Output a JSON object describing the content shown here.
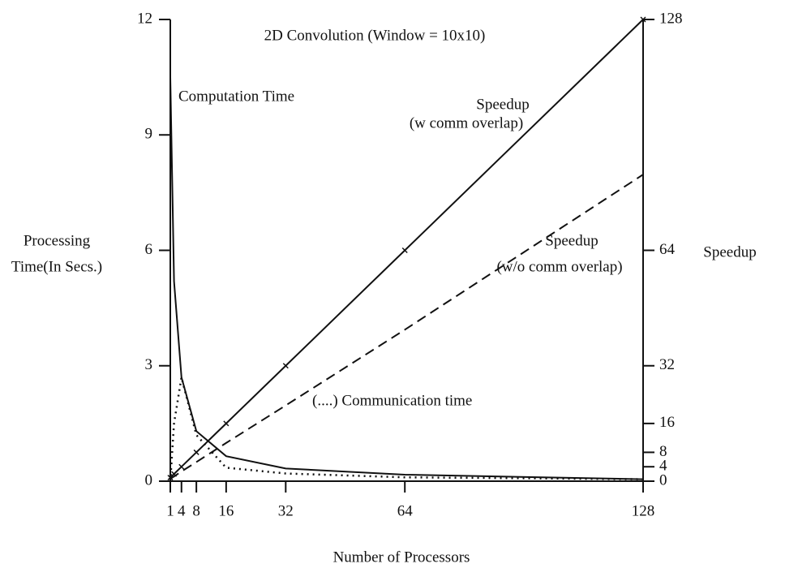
{
  "chart_data": {
    "type": "line",
    "title": "2D Convolution (Window = 10x10)",
    "xlabel": "Number of Processors",
    "ylabel": [
      "Processing",
      "Time(In Secs.)"
    ],
    "y2label": "Speedup",
    "x": [
      1,
      2,
      4,
      8,
      16,
      32,
      64,
      128
    ],
    "xlim": [
      1,
      128
    ],
    "xticks": [
      1,
      4,
      8,
      16,
      32,
      64,
      128
    ],
    "ylim": [
      0,
      12
    ],
    "yticks": [
      0,
      3,
      6,
      9,
      12
    ],
    "y2lim": [
      0,
      128
    ],
    "y2ticks": [
      0,
      4,
      8,
      16,
      32,
      64,
      128
    ],
    "series": [
      {
        "color": "#111",
        "style": "solid",
        "axis": "y",
        "values": [
          10.5,
          5.2,
          2.7,
          1.3,
          0.65,
          0.33,
          0.17,
          0.05
        ]
      },
      {
        "color": "#111",
        "style": "dotted",
        "axis": "y",
        "values": [
          0,
          1.5,
          2.7,
          1.2,
          0.35,
          0.2,
          0.1,
          0.05
        ]
      },
      {
        "color": "#111",
        "style": "solid",
        "axis": "y2",
        "markers": true,
        "values": [
          1,
          2,
          4,
          8,
          16,
          32,
          64,
          128
        ]
      },
      {
        "color": "#111",
        "style": "dashed",
        "axis": "y2",
        "values": [
          0.7,
          1.3,
          2.7,
          5.3,
          10.6,
          21,
          42,
          85
        ]
      }
    ],
    "annotations": [
      [
        "Computation Time"
      ],
      [
        "Speedup",
        "(w comm overlap)"
      ],
      [
        "Speedup",
        "(w/o comm overlap)"
      ],
      [
        "(....) Communication time"
      ]
    ]
  }
}
